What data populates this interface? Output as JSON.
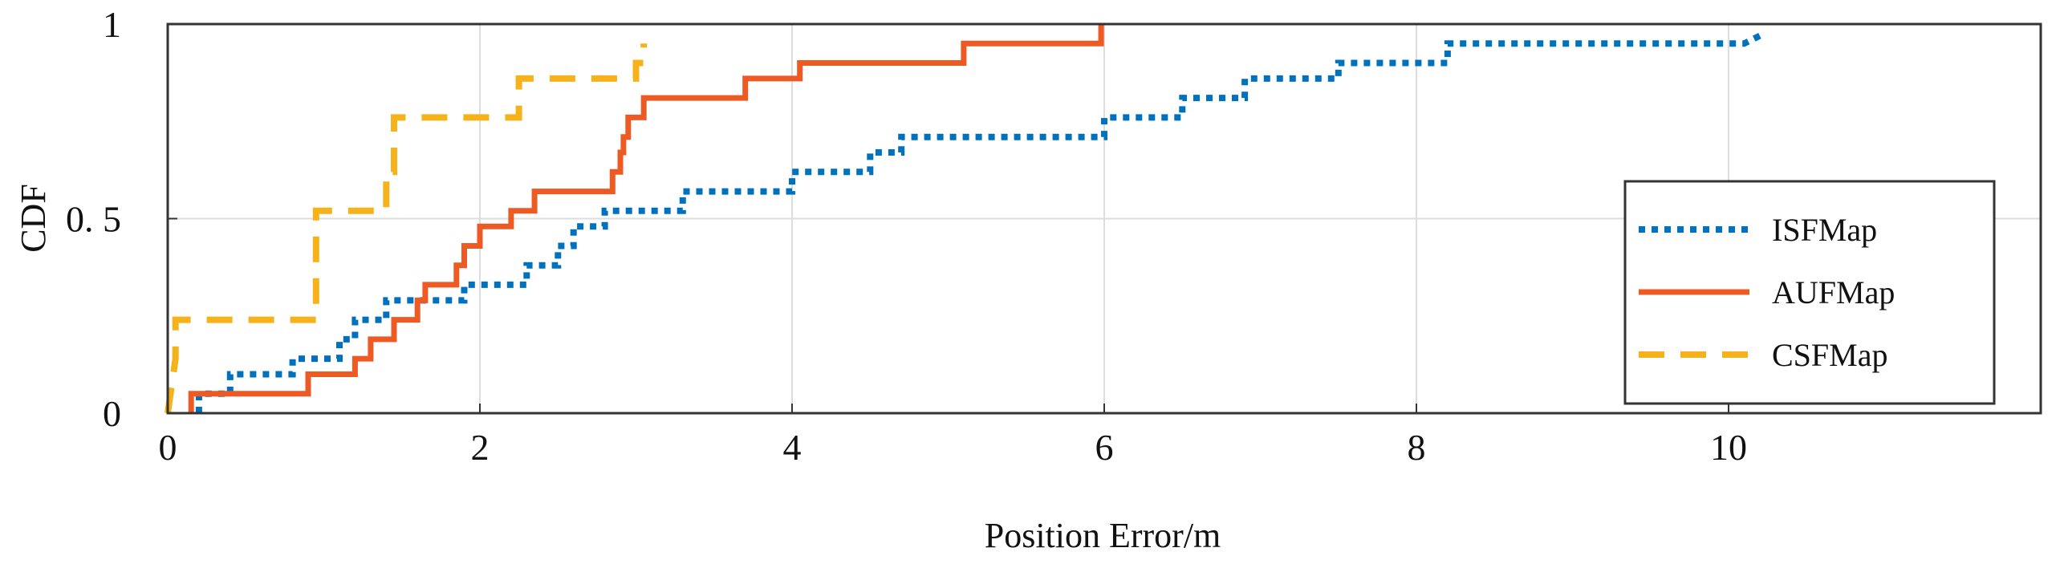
{
  "chart_data": {
    "type": "line",
    "subtype": "step-cdf",
    "xlabel": "Position Error/m",
    "ylabel": "CDF",
    "xlim": [
      0,
      12
    ],
    "ylim": [
      0,
      1
    ],
    "xticks": [
      0,
      2,
      4,
      6,
      8,
      10
    ],
    "xtick_labels": [
      "0",
      "2",
      "4",
      "6",
      "8",
      "10"
    ],
    "yticks": [
      0,
      0.5,
      1
    ],
    "ytick_labels": [
      "0",
      "0. 5",
      "1"
    ],
    "grid": true,
    "legend_position": "right",
    "series": [
      {
        "name": "ISFMap",
        "color": "#0072BD",
        "style": "dotted",
        "points": [
          [
            0.2,
            0.0
          ],
          [
            0.2,
            0.05
          ],
          [
            0.4,
            0.05
          ],
          [
            0.4,
            0.1
          ],
          [
            0.8,
            0.1
          ],
          [
            0.8,
            0.14
          ],
          [
            1.1,
            0.14
          ],
          [
            1.1,
            0.19
          ],
          [
            1.2,
            0.19
          ],
          [
            1.2,
            0.24
          ],
          [
            1.4,
            0.24
          ],
          [
            1.4,
            0.29
          ],
          [
            1.9,
            0.29
          ],
          [
            1.9,
            0.33
          ],
          [
            2.3,
            0.33
          ],
          [
            2.3,
            0.38
          ],
          [
            2.5,
            0.38
          ],
          [
            2.5,
            0.43
          ],
          [
            2.6,
            0.43
          ],
          [
            2.6,
            0.48
          ],
          [
            2.8,
            0.48
          ],
          [
            2.8,
            0.52
          ],
          [
            3.3,
            0.52
          ],
          [
            3.3,
            0.57
          ],
          [
            4.0,
            0.57
          ],
          [
            4.0,
            0.62
          ],
          [
            4.5,
            0.62
          ],
          [
            4.5,
            0.67
          ],
          [
            4.7,
            0.67
          ],
          [
            4.7,
            0.71
          ],
          [
            6.0,
            0.71
          ],
          [
            6.0,
            0.76
          ],
          [
            6.5,
            0.76
          ],
          [
            6.5,
            0.81
          ],
          [
            6.9,
            0.81
          ],
          [
            6.9,
            0.86
          ],
          [
            7.5,
            0.86
          ],
          [
            7.5,
            0.9
          ],
          [
            8.2,
            0.9
          ],
          [
            8.2,
            0.95
          ],
          [
            10.1,
            0.95
          ],
          [
            10.2,
            0.97
          ]
        ]
      },
      {
        "name": "AUFMap",
        "color": "#EE5A24",
        "style": "solid",
        "points": [
          [
            0.15,
            0.0
          ],
          [
            0.15,
            0.05
          ],
          [
            0.9,
            0.05
          ],
          [
            0.9,
            0.1
          ],
          [
            1.2,
            0.1
          ],
          [
            1.2,
            0.14
          ],
          [
            1.3,
            0.14
          ],
          [
            1.3,
            0.19
          ],
          [
            1.45,
            0.19
          ],
          [
            1.45,
            0.24
          ],
          [
            1.6,
            0.24
          ],
          [
            1.6,
            0.29
          ],
          [
            1.65,
            0.29
          ],
          [
            1.65,
            0.33
          ],
          [
            1.85,
            0.33
          ],
          [
            1.85,
            0.38
          ],
          [
            1.9,
            0.38
          ],
          [
            1.9,
            0.43
          ],
          [
            2.0,
            0.43
          ],
          [
            2.0,
            0.48
          ],
          [
            2.2,
            0.48
          ],
          [
            2.2,
            0.52
          ],
          [
            2.35,
            0.52
          ],
          [
            2.35,
            0.57
          ],
          [
            2.85,
            0.57
          ],
          [
            2.85,
            0.62
          ],
          [
            2.9,
            0.62
          ],
          [
            2.9,
            0.67
          ],
          [
            2.92,
            0.67
          ],
          [
            2.92,
            0.71
          ],
          [
            2.95,
            0.71
          ],
          [
            2.95,
            0.76
          ],
          [
            3.05,
            0.76
          ],
          [
            3.05,
            0.81
          ],
          [
            3.7,
            0.81
          ],
          [
            3.7,
            0.86
          ],
          [
            4.05,
            0.86
          ],
          [
            4.05,
            0.9
          ],
          [
            5.1,
            0.9
          ],
          [
            5.1,
            0.95
          ],
          [
            5.98,
            0.95
          ],
          [
            5.98,
            1.0
          ]
        ]
      },
      {
        "name": "CSFMap",
        "color": "#F5B21B",
        "style": "dashed",
        "points": [
          [
            0.0,
            0.0
          ],
          [
            0.05,
            0.14
          ],
          [
            0.05,
            0.24
          ],
          [
            0.95,
            0.24
          ],
          [
            0.95,
            0.52
          ],
          [
            1.4,
            0.52
          ],
          [
            1.4,
            0.62
          ],
          [
            1.45,
            0.62
          ],
          [
            1.45,
            0.76
          ],
          [
            2.25,
            0.76
          ],
          [
            2.25,
            0.86
          ],
          [
            3.0,
            0.86
          ],
          [
            3.0,
            0.9
          ],
          [
            3.05,
            0.9
          ],
          [
            3.05,
            0.95
          ]
        ]
      }
    ]
  }
}
